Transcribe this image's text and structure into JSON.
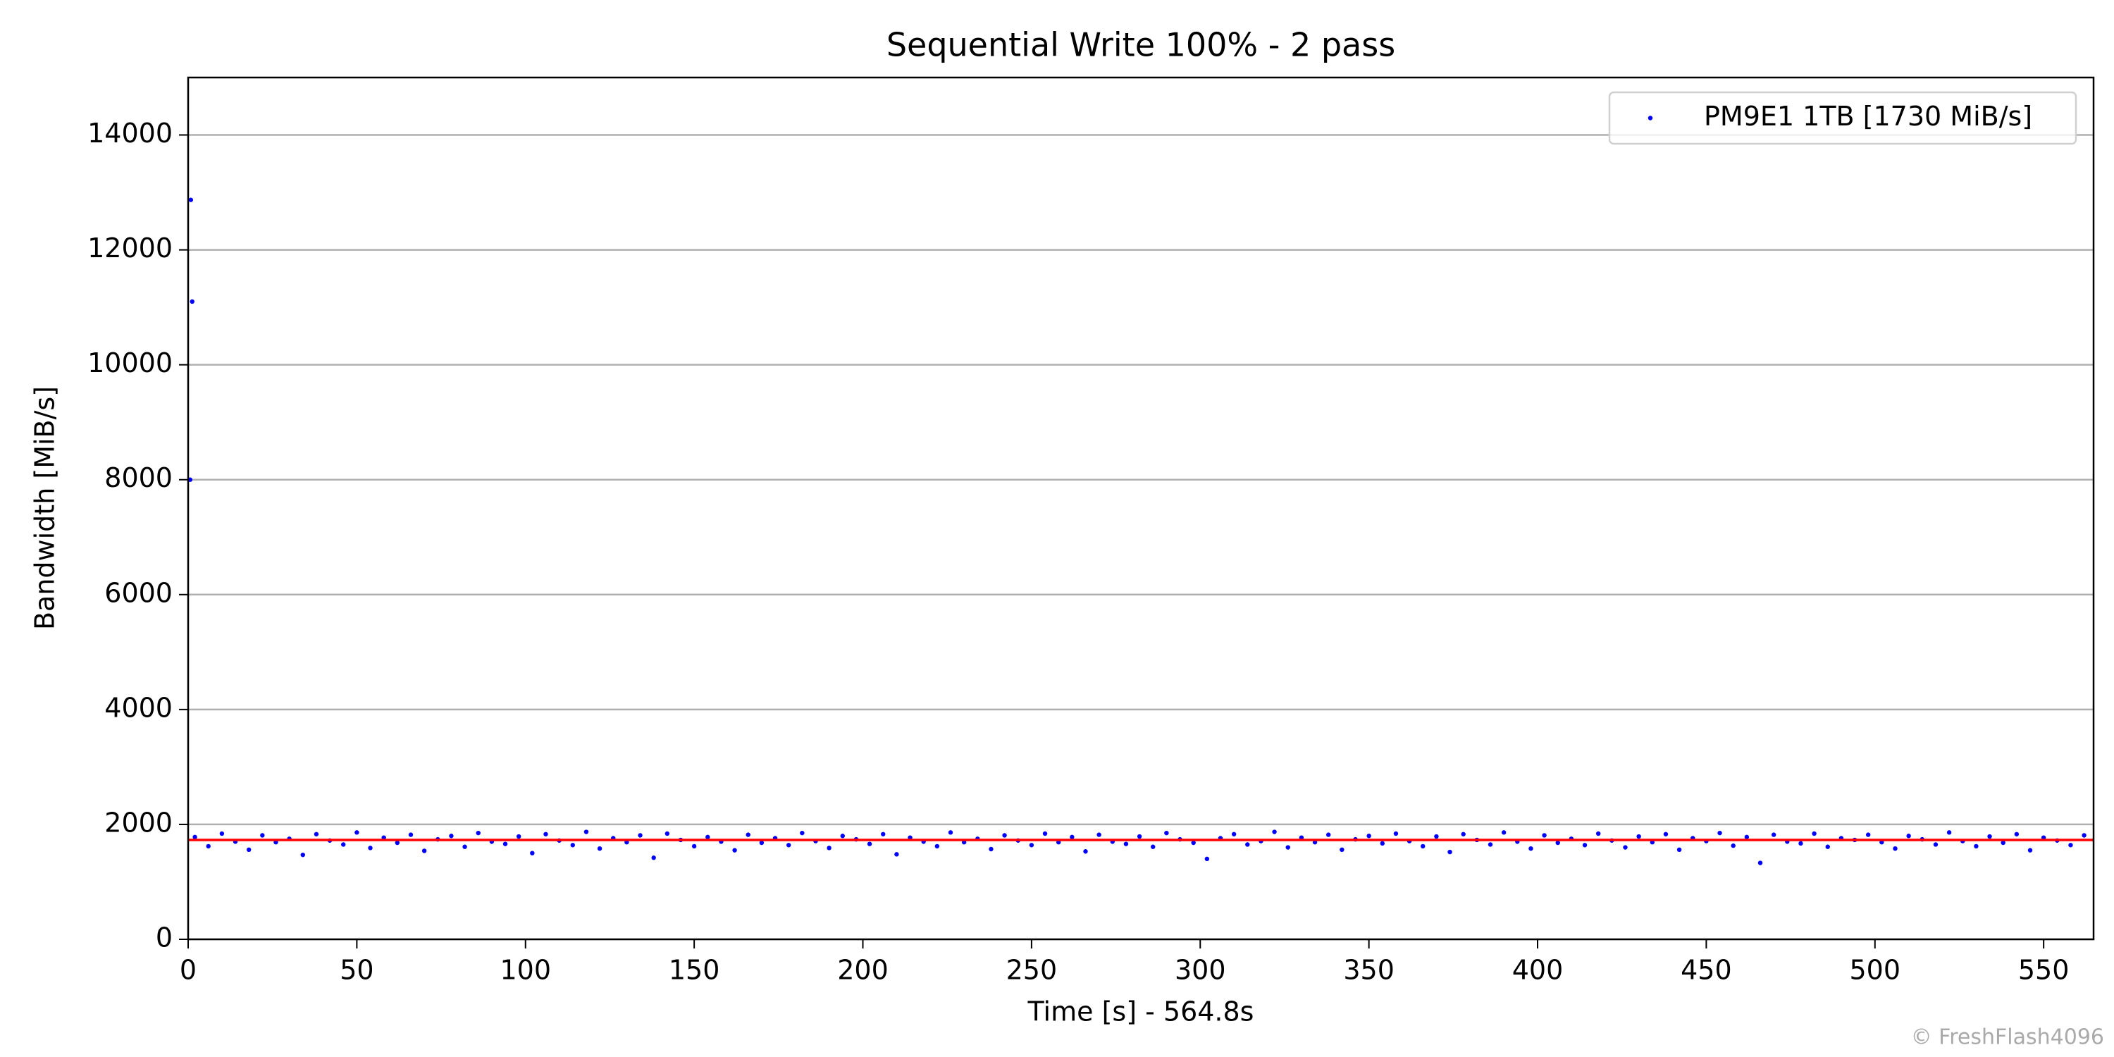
{
  "chart_data": {
    "type": "scatter",
    "title": "Sequential Write 100% - 2 pass",
    "x_label": "Time [s] - 564.8s",
    "y_label": "Bandwidth [MiB/s]",
    "watermark": "© FreshFlash4096",
    "xlim": [
      0,
      564.8
    ],
    "ylim": [
      0,
      15000
    ],
    "xticks": [
      0,
      50,
      100,
      150,
      200,
      250,
      300,
      350,
      400,
      450,
      500,
      550
    ],
    "yticks": [
      0,
      2000,
      4000,
      6000,
      8000,
      10000,
      12000,
      14000
    ],
    "grid": "y",
    "legend": "upper right",
    "mean_line": {
      "value": 1730,
      "color": "#ff0000"
    },
    "series": [
      {
        "name": "PM9E1 1TB [1730 MiB/s]",
        "color": "#0000ff",
        "x": [
          0.6,
          0.8,
          1.2,
          2,
          6,
          10,
          14,
          18,
          22,
          26,
          30,
          34,
          38,
          42,
          46,
          50,
          54,
          58,
          62,
          66,
          70,
          74,
          78,
          82,
          86,
          90,
          94,
          98,
          102,
          106,
          110,
          114,
          118,
          122,
          126,
          130,
          134,
          138,
          142,
          146,
          150,
          154,
          158,
          162,
          166,
          170,
          174,
          178,
          182,
          186,
          190,
          194,
          198,
          202,
          206,
          210,
          214,
          218,
          222,
          226,
          230,
          234,
          238,
          242,
          246,
          250,
          254,
          258,
          262,
          266,
          270,
          274,
          278,
          282,
          286,
          290,
          294,
          298,
          302,
          306,
          310,
          314,
          318,
          322,
          326,
          330,
          334,
          338,
          342,
          346,
          350,
          354,
          358,
          362,
          366,
          370,
          374,
          378,
          382,
          386,
          390,
          394,
          398,
          402,
          406,
          410,
          414,
          418,
          422,
          426,
          430,
          434,
          438,
          442,
          446,
          450,
          454,
          458,
          462,
          466,
          470,
          474,
          478,
          482,
          486,
          490,
          494,
          498,
          502,
          506,
          510,
          514,
          518,
          522,
          526,
          530,
          534,
          538,
          542,
          546,
          550,
          554,
          558,
          562
        ],
        "values": [
          8000,
          12870,
          11100,
          1780,
          1620,
          1840,
          1700,
          1560,
          1810,
          1690,
          1750,
          1470,
          1830,
          1720,
          1650,
          1860,
          1590,
          1770,
          1680,
          1820,
          1540,
          1740,
          1800,
          1610,
          1850,
          1700,
          1660,
          1790,
          1500,
          1830,
          1720,
          1640,
          1870,
          1580,
          1760,
          1690,
          1810,
          1420,
          1840,
          1730,
          1620,
          1780,
          1700,
          1550,
          1820,
          1680,
          1760,
          1640,
          1850,
          1710,
          1590,
          1800,
          1740,
          1660,
          1830,
          1480,
          1770,
          1700,
          1620,
          1860,
          1690,
          1750,
          1570,
          1810,
          1720,
          1640,
          1840,
          1690,
          1780,
          1530,
          1820,
          1700,
          1660,
          1790,
          1610,
          1850,
          1740,
          1680,
          1400,
          1760,
          1830,
          1650,
          1710,
          1870,
          1600,
          1770,
          1690,
          1820,
          1560,
          1740,
          1800,
          1670,
          1840,
          1710,
          1620,
          1790,
          1520,
          1830,
          1730,
          1650,
          1860,
          1700,
          1580,
          1810,
          1680,
          1750,
          1640,
          1840,
          1720,
          1600,
          1790,
          1690,
          1830,
          1560,
          1760,
          1710,
          1850,
          1630,
          1780,
          1330,
          1820,
          1700,
          1670,
          1840,
          1610,
          1760,
          1730,
          1820,
          1690,
          1580,
          1800,
          1740,
          1650,
          1860,
          1710,
          1620,
          1790,
          1680,
          1830,
          1550,
          1770,
          1720,
          1640,
          1810
        ]
      }
    ]
  }
}
